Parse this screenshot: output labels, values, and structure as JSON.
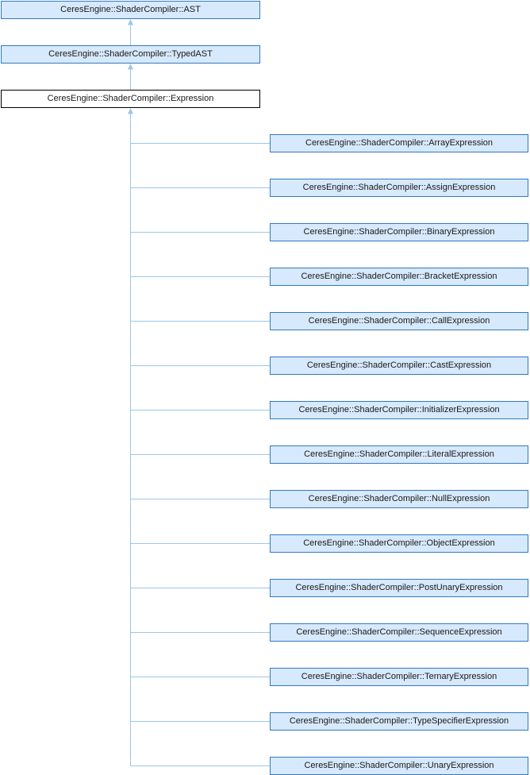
{
  "diagram": {
    "base_chain": [
      {
        "label": "CeresEngine::ShaderCompiler::AST"
      },
      {
        "label": "CeresEngine::ShaderCompiler::TypedAST"
      }
    ],
    "current": {
      "label": "CeresEngine::ShaderCompiler::Expression"
    },
    "derived": [
      {
        "label": "CeresEngine::ShaderCompiler::ArrayExpression"
      },
      {
        "label": "CeresEngine::ShaderCompiler::AssignExpression"
      },
      {
        "label": "CeresEngine::ShaderCompiler::BinaryExpression"
      },
      {
        "label": "CeresEngine::ShaderCompiler::BracketExpression"
      },
      {
        "label": "CeresEngine::ShaderCompiler::CallExpression"
      },
      {
        "label": "CeresEngine::ShaderCompiler::CastExpression"
      },
      {
        "label": "CeresEngine::ShaderCompiler::InitializerExpression"
      },
      {
        "label": "CeresEngine::ShaderCompiler::LiteralExpression"
      },
      {
        "label": "CeresEngine::ShaderCompiler::NullExpression"
      },
      {
        "label": "CeresEngine::ShaderCompiler::ObjectExpression"
      },
      {
        "label": "CeresEngine::ShaderCompiler::PostUnaryExpression"
      },
      {
        "label": "CeresEngine::ShaderCompiler::SequenceExpression"
      },
      {
        "label": "CeresEngine::ShaderCompiler::TernaryExpression"
      },
      {
        "label": "CeresEngine::ShaderCompiler::TypeSpecifierExpression"
      },
      {
        "label": "CeresEngine::ShaderCompiler::UnaryExpression"
      }
    ],
    "colors": {
      "node_fill": "#d7e9fc",
      "node_border": "#3079c4",
      "current_node_fill": "#ffffff",
      "current_node_border": "#000000",
      "connector": "#9cc7e9",
      "text": "#1a1a1a",
      "background": "#ffffff"
    }
  }
}
